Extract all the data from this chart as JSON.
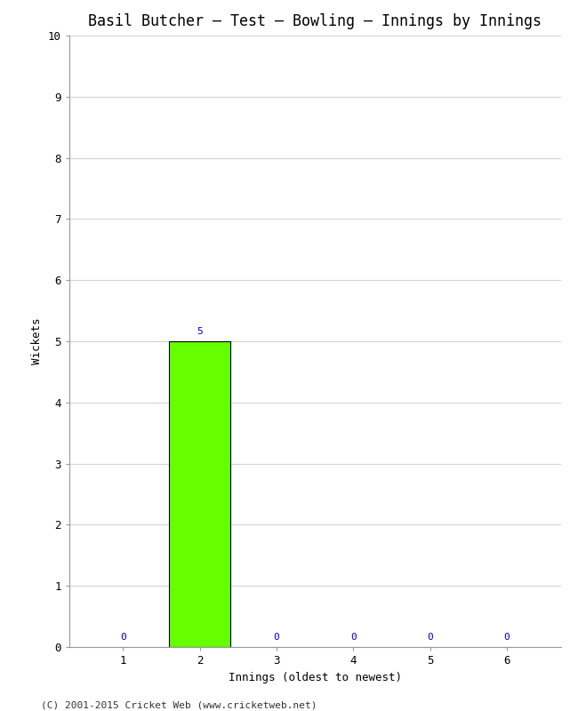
{
  "title": "Basil Butcher – Test – Bowling – Innings by Innings",
  "xlabel": "Innings (oldest to newest)",
  "ylabel": "Wickets",
  "categories": [
    1,
    2,
    3,
    4,
    5,
    6
  ],
  "values": [
    0,
    5,
    0,
    0,
    0,
    0
  ],
  "bar_color": "#66ff00",
  "bar_edge_color": "#000000",
  "zero_bar_color": "#ffffff",
  "zero_bar_edge_color": "#ffffff",
  "label_color": "#0000cc",
  "ylim": [
    0,
    10
  ],
  "yticks": [
    0,
    1,
    2,
    3,
    4,
    5,
    6,
    7,
    8,
    9,
    10
  ],
  "background_color": "#ffffff",
  "grid_color": "#d3d3d3",
  "title_fontsize": 12,
  "axis_label_fontsize": 9,
  "tick_fontsize": 9,
  "annotation_fontsize": 8,
  "footer": "(C) 2001-2015 Cricket Web (www.cricketweb.net)",
  "footer_fontsize": 8
}
